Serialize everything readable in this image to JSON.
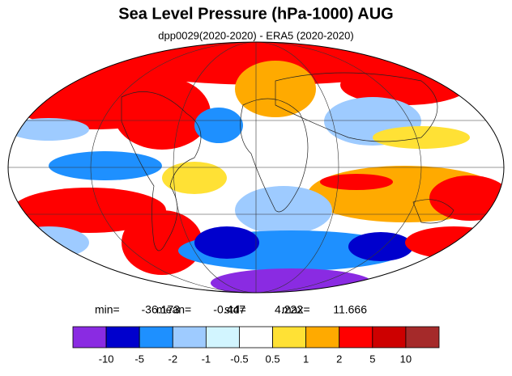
{
  "title": "Sea Level Pressure (hPa-1000) AUG",
  "subtitle": "dpp0029(2020-2020) - ERA5 (2020-2020)",
  "stats": [
    {
      "label": "min=",
      "value": -36.173
    },
    {
      "label": "mean=",
      "value": -0.447
    },
    {
      "label": "std=",
      "value": 4.222
    },
    {
      "label": "max=",
      "value": 11.666
    }
  ],
  "colorbar": {
    "colors": [
      "#8a2be2",
      "#0000cd",
      "#1e90ff",
      "#9ecbff",
      "#d2f5ff",
      "#ffffff",
      "#ffe135",
      "#ffaa00",
      "#ff0000",
      "#cd0000",
      "#a52a2a"
    ],
    "levels": [
      -10,
      -5,
      -2,
      -1,
      -0.5,
      0.5,
      1,
      2,
      5,
      10
    ]
  }
}
